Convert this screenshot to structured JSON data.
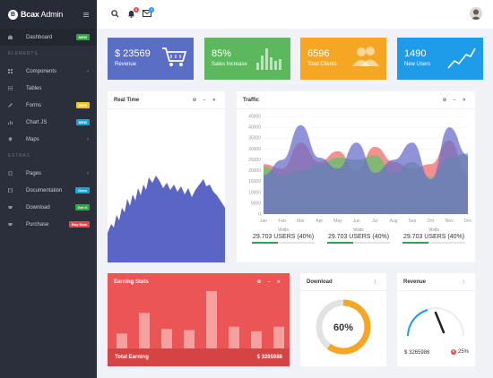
{
  "brand": {
    "name_bold": "Bcax",
    "name_rest": " Admin",
    "logo_letter": "B"
  },
  "sidebar": {
    "items": [
      {
        "label": "Dashboard",
        "badge": "NEW",
        "badge_color": "#2ea646"
      },
      {
        "section": "ELEMENTS"
      },
      {
        "label": "Components",
        "chevron": true
      },
      {
        "label": "Tables"
      },
      {
        "label": "Forms",
        "badge": "NEW",
        "badge_color": "#f5c518"
      },
      {
        "label": "Chart JS",
        "badge": "NEW",
        "badge_color": "#1fa2cf"
      },
      {
        "label": "Maps",
        "chevron": true
      },
      {
        "section": "EXTRAS"
      },
      {
        "label": "Pages",
        "chevron": true
      },
      {
        "label": "Documentation",
        "badge": "Docs",
        "badge_color": "#1fa2cf"
      },
      {
        "label": "Download",
        "badge": "Get it",
        "badge_color": "#2ea646"
      },
      {
        "label": "Purchase",
        "badge": "Buy Now",
        "badge_color": "#e5484d"
      }
    ]
  },
  "topbar": {
    "bell_count": "5",
    "mail_count": "3"
  },
  "stats": [
    {
      "value": "$ 23569",
      "label": "Revenue",
      "color": "#5b6ec6",
      "icon": "cart-icon"
    },
    {
      "value": "85%",
      "label": "Sales Increase",
      "color": "#5cb85c",
      "icon": "bar-chart-icon"
    },
    {
      "value": "6596",
      "label": "Total Clients",
      "color": "#f5a623",
      "icon": "users-icon"
    },
    {
      "value": "1490",
      "label": "New Users",
      "color": "#1e9be9",
      "icon": "line-chart-icon"
    }
  ],
  "realtime": {
    "title": "Real Time",
    "tools": "⚙ – ✕"
  },
  "traffic": {
    "title": "Traffic",
    "tools": "⚙ – ✕",
    "legend": [
      {
        "label": "Visits",
        "value": "29.703 USERS (40%)"
      },
      {
        "label": "Visits",
        "value": "29.703 USERS (40%)"
      },
      {
        "label": "Visits",
        "value": "29.703 USERS (40%)"
      }
    ]
  },
  "earning": {
    "title": "Earning Stats",
    "tools": "⚙ – ✕",
    "footer_label": "Total Earning",
    "footer_value": "$ 3265986"
  },
  "download": {
    "title": "Download",
    "percent": "60%",
    "fill": 0.6,
    "menu": "⋮"
  },
  "revenue": {
    "title": "Revenue",
    "menu": "⋮",
    "amount": "$ 3265986",
    "change": "25%"
  },
  "chart_data": [
    {
      "type": "area",
      "title": "Traffic",
      "categories": [
        "Jan",
        "Feb",
        "Mar",
        "Apr",
        "May",
        "Jun",
        "Jul",
        "Aug",
        "Sep",
        "Oct",
        "Nov",
        "Dec"
      ],
      "yticks": [
        "0",
        "5000",
        "10000",
        "15000",
        "20000",
        "25000",
        "30000",
        "35000",
        "40000",
        "45000"
      ],
      "ylim": [
        0,
        45000
      ],
      "series": [
        {
          "color": "#ef6b6b",
          "values": [
            23000,
            21000,
            33000,
            24000,
            29000,
            20000,
            31000,
            24000,
            21000,
            23000,
            34000,
            18000
          ]
        },
        {
          "color": "#5fc46a",
          "values": [
            22000,
            18000,
            20000,
            23000,
            26000,
            25000,
            27000,
            19000,
            24000,
            17000,
            26000,
            28000
          ]
        },
        {
          "color": "#6b6fc9",
          "values": [
            18000,
            25000,
            41000,
            26000,
            21000,
            33000,
            19000,
            25000,
            33000,
            16000,
            40000,
            27000
          ]
        }
      ]
    },
    {
      "type": "bar",
      "title": "Earning Stats",
      "values": [
        26,
        62,
        34,
        32,
        100,
        38,
        30,
        38,
        32
      ]
    }
  ]
}
